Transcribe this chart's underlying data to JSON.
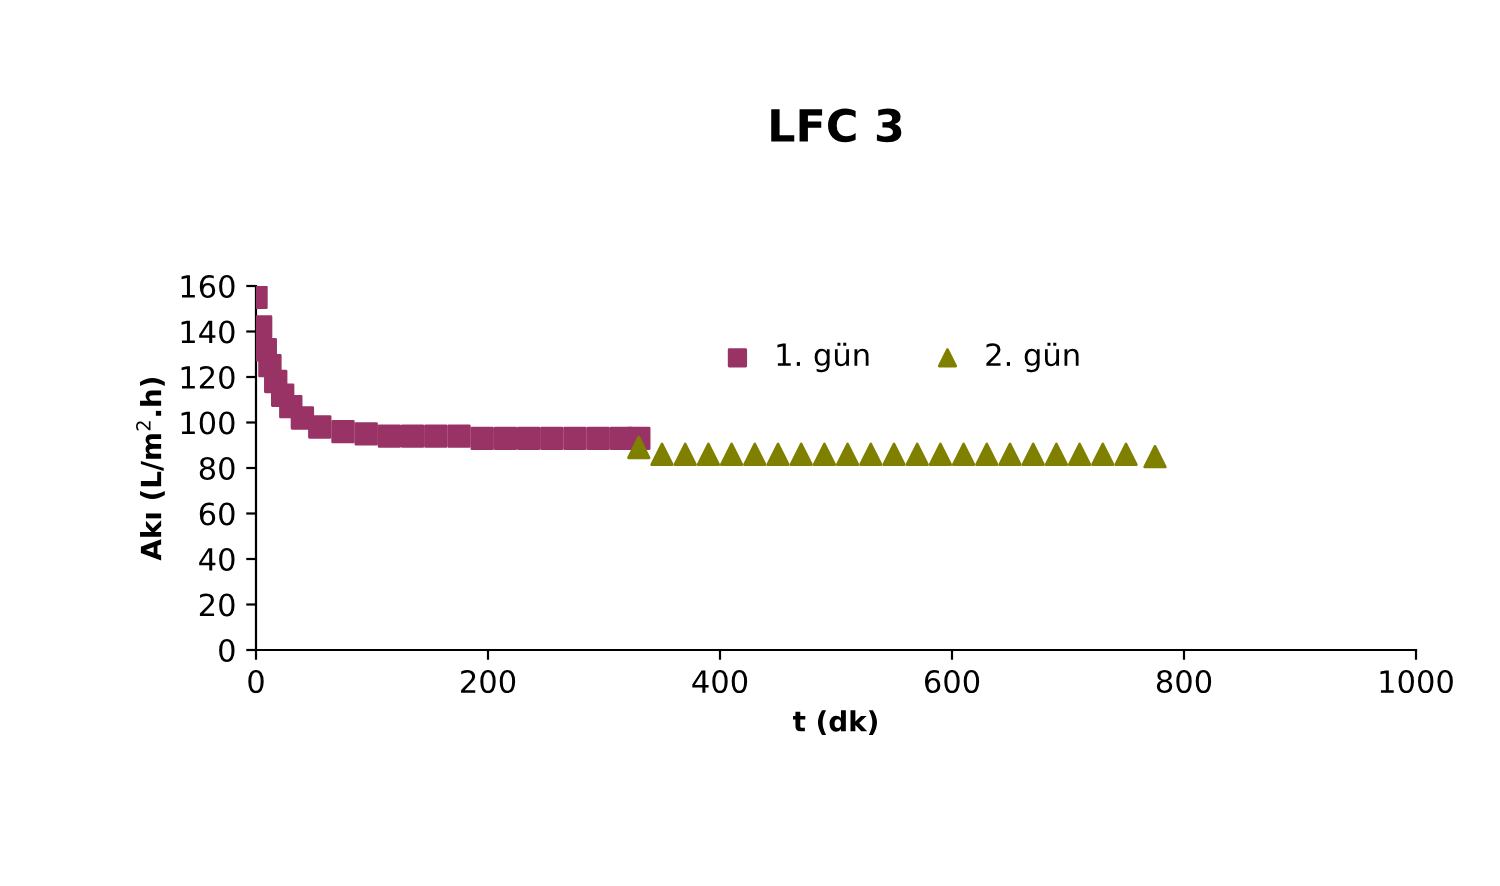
{
  "chart_data": {
    "type": "scatter",
    "title": "LFC 3",
    "xlabel": "t (dk)",
    "ylabel": "Akı (L/m$^{2}$.h)",
    "xlim": [
      0,
      1000
    ],
    "xticks": [
      0,
      200,
      400,
      600,
      800,
      1000
    ],
    "ylim": [
      0,
      160
    ],
    "yticks": [
      0,
      20,
      40,
      60,
      80,
      100,
      120,
      140,
      160
    ],
    "legend": "top right",
    "grid": false,
    "series": [
      {
        "name": "1. gün",
        "color": "#993366",
        "marker": "square",
        "x": [
          0,
          4,
          8,
          12,
          17,
          23,
          30,
          40,
          55,
          75,
          95,
          115,
          135,
          155,
          175,
          195,
          215,
          235,
          255,
          275,
          295,
          315,
          330
        ],
        "values": [
          155,
          142,
          132,
          125,
          118,
          112,
          107,
          102,
          98,
          96,
          95,
          94,
          94,
          94,
          94,
          93,
          93,
          93,
          93,
          93,
          93,
          93,
          93
        ]
      },
      {
        "name": "2. gün",
        "color": "#808000",
        "marker": "triangle",
        "x": [
          330,
          350,
          370,
          390,
          410,
          430,
          450,
          470,
          490,
          510,
          530,
          550,
          570,
          590,
          610,
          630,
          650,
          670,
          690,
          710,
          730,
          750,
          775
        ],
        "values": [
          89,
          86,
          86,
          86,
          86,
          86,
          86,
          86,
          86,
          86,
          86,
          86,
          86,
          86,
          86,
          86,
          86,
          86,
          86,
          86,
          86,
          86,
          85
        ]
      }
    ]
  }
}
